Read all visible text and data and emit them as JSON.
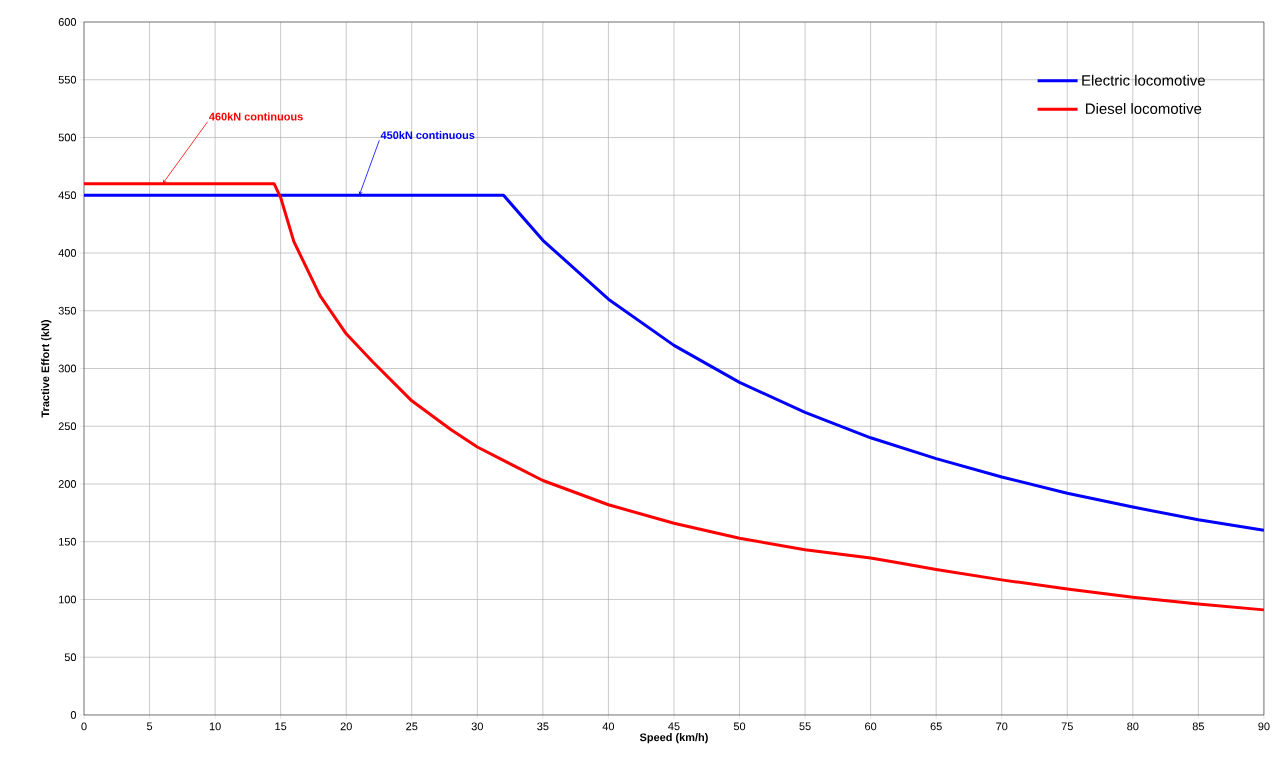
{
  "chart_data": {
    "type": "line",
    "xlabel": "Speed (km/h)",
    "ylabel": "Tractive Effort (kN)",
    "xlim": [
      0,
      90
    ],
    "ylim": [
      0,
      600
    ],
    "xticks": [
      0,
      5,
      10,
      15,
      20,
      25,
      30,
      35,
      40,
      45,
      50,
      55,
      60,
      65,
      70,
      75,
      80,
      85,
      90
    ],
    "yticks": [
      0,
      50,
      100,
      150,
      200,
      250,
      300,
      350,
      400,
      450,
      500,
      550,
      600
    ],
    "grid": true,
    "legend": "top right",
    "marker": "none",
    "line_style": "solid",
    "series": [
      {
        "name": "Electric locomotive",
        "color": "#0000ff",
        "x": [
          0,
          32,
          35,
          40,
          45,
          50,
          55,
          60,
          65,
          70,
          75,
          80,
          85,
          90
        ],
        "values": [
          450,
          450,
          411,
          360,
          320,
          288,
          262,
          240,
          222,
          206,
          192,
          180,
          169,
          160
        ]
      },
      {
        "name": "Diesel locomotive",
        "color": "#ff0000",
        "x": [
          0,
          14.5,
          15,
          16,
          18,
          20,
          22,
          25,
          28,
          30,
          35,
          40,
          45,
          50,
          55,
          60,
          62,
          65,
          70,
          75,
          80,
          85,
          90
        ],
        "values": [
          460,
          460,
          448,
          410,
          363,
          330,
          306,
          272,
          247,
          232,
          203,
          182,
          166,
          153,
          143,
          136,
          132,
          126,
          117,
          109,
          102,
          96,
          91
        ]
      }
    ],
    "annotations": [
      {
        "text": "450kN continuous",
        "x": 21,
        "y": 450
      },
      {
        "text": "460kN continuous",
        "x": 6,
        "y": 460
      }
    ]
  }
}
